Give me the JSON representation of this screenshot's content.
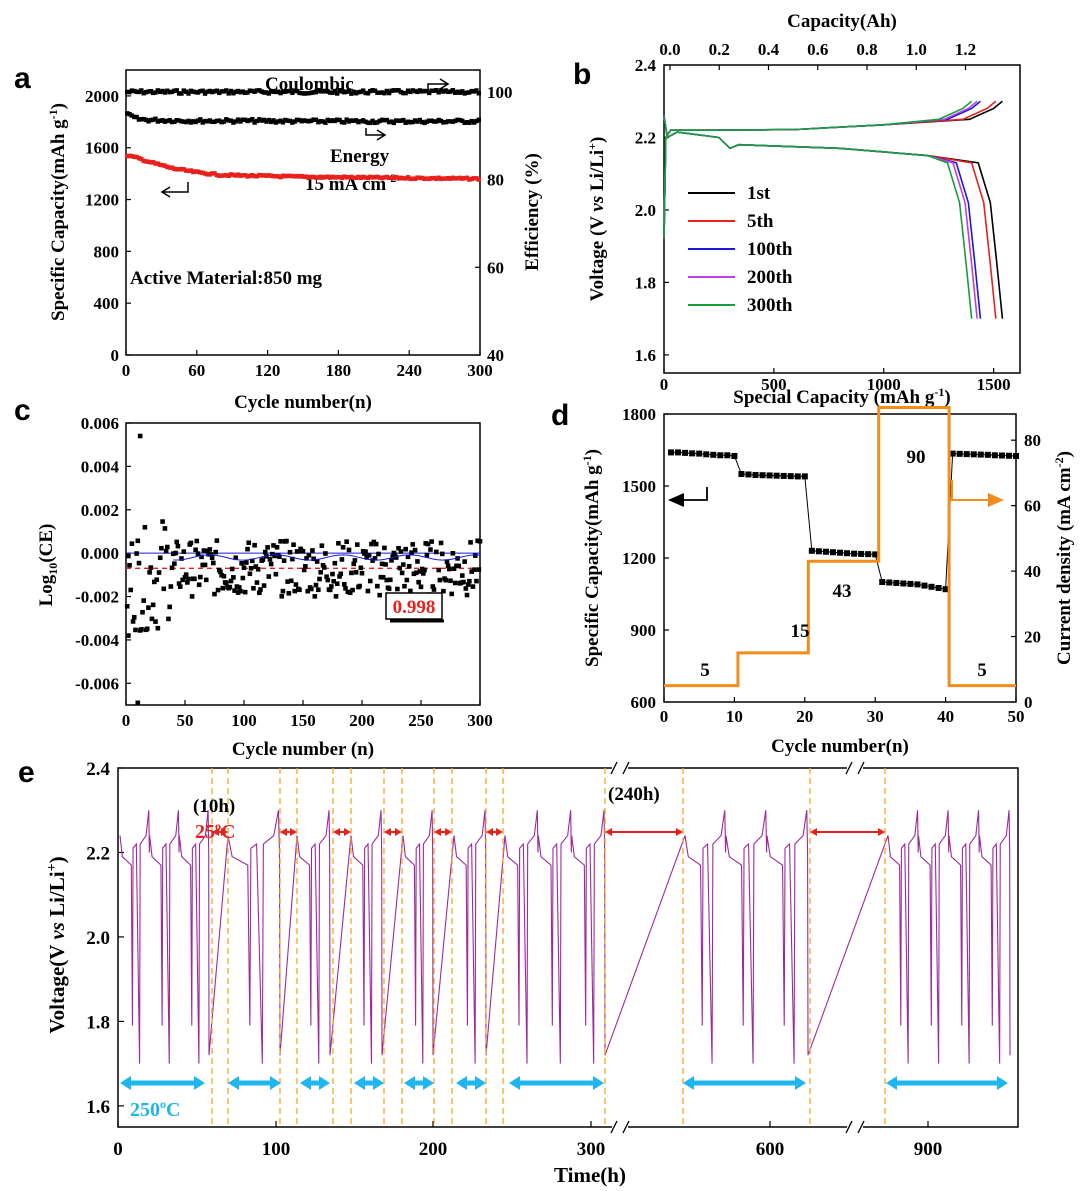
{
  "chart_data": [
    {
      "panel": "a",
      "type": "scatter",
      "xlabel": "Cycle number(n)",
      "ylabel": "Specific Capacity(mAh g-1)",
      "ylabel_right": "Efficiency (%)",
      "xticks": [
        "0",
        "60",
        "120",
        "180",
        "240",
        "300"
      ],
      "yticks": [
        "0",
        "400",
        "800",
        "1200",
        "1600",
        "2000"
      ],
      "yticks_right": [
        "40",
        "60",
        "80",
        "100"
      ],
      "xlim": [
        0,
        300
      ],
      "ylim": [
        0,
        2200
      ],
      "ylim_right": [
        40,
        105
      ],
      "series": [
        {
          "name": "Coulombic",
          "axis": "right",
          "color": "#000000",
          "x": [
            1,
            30,
            60,
            100,
            150,
            200,
            250,
            300
          ],
          "values": [
            100,
            100,
            100,
            100,
            100,
            100,
            100,
            100
          ]
        },
        {
          "name": "Energy",
          "axis": "right",
          "color": "#000000",
          "x": [
            1,
            10,
            20,
            40,
            60,
            100,
            150,
            200,
            250,
            300
          ],
          "values": [
            94.8,
            93.8,
            93.6,
            93.5,
            93.4,
            93.4,
            93.3,
            93.3,
            93.3,
            93.3
          ]
        },
        {
          "name": "Specific capacity",
          "axis": "left",
          "color": "#e8211c",
          "x": [
            1,
            10,
            20,
            40,
            60,
            80,
            100,
            150,
            200,
            250,
            300
          ],
          "values": [
            1540,
            1520,
            1490,
            1440,
            1410,
            1390,
            1385,
            1375,
            1370,
            1365,
            1360
          ]
        }
      ],
      "annotations": {
        "coulombic": "Coulombic",
        "energy": "Energy",
        "current": "15 mA cm",
        "current_sup": "-2",
        "active": "Active Material:850 mg"
      }
    },
    {
      "panel": "b",
      "type": "line",
      "xlabel": "Special Capacity (mAh g",
      "xlabel_sup": "-1",
      "xlabel_end": ")",
      "x2label": "Capacity(Ah)",
      "ylabel": "Voltage (V vs Li/Li+)",
      "xticks": [
        "0",
        "500",
        "1000",
        "1500"
      ],
      "x2ticks": [
        "0.0",
        "0.2",
        "0.4",
        "0.6",
        "0.8",
        "1.0",
        "1.2"
      ],
      "yticks": [
        "1.6",
        "1.8",
        "2.0",
        "2.2",
        "2.4"
      ],
      "xlim": [
        0,
        1620
      ],
      "ylim": [
        1.55,
        2.4
      ],
      "series": [
        {
          "name": "1st",
          "color": "#000000",
          "x_end": 1540
        },
        {
          "name": "5th",
          "color": "#e8211c",
          "x_end": 1510
        },
        {
          "name": "100th",
          "color": "#1a1ad6",
          "x_end": 1440
        },
        {
          "name": "200th",
          "color": "#c03ee8",
          "x_end": 1425
        },
        {
          "name": "300th",
          "color": "#13a03a",
          "x_end": 1400
        }
      ],
      "charge_plateau_v": 2.22,
      "discharge_plateau_v": [
        2.18,
        2.14
      ],
      "cutoff_v": [
        1.7,
        2.3
      ]
    },
    {
      "panel": "c",
      "type": "scatter",
      "xlabel": "Cycle number (n)",
      "ylabel": "Log10(CE)",
      "xticks": [
        "0",
        "50",
        "100",
        "150",
        "200",
        "250",
        "300"
      ],
      "yticks": [
        "-0.006",
        "-0.004",
        "-0.002",
        "0.000",
        "0.002",
        "0.004",
        "0.006"
      ],
      "xlim": [
        0,
        300
      ],
      "ylim": [
        -0.007,
        0.006
      ],
      "mean_line": -0.0007,
      "zero_line": 0.0,
      "annotation": "0.998",
      "highlights": [
        {
          "x": 12,
          "y": 0.0054
        },
        {
          "x": 10,
          "y": -0.0069
        },
        {
          "x": 2,
          "y": -0.0038
        }
      ]
    },
    {
      "panel": "d",
      "type": "line",
      "xlabel": "Cycle number(n)",
      "ylabel": "Specific Capacity(mAh g-1)",
      "ylabel_right": "Current density (mA cm-2)",
      "xticks": [
        "0",
        "10",
        "20",
        "30",
        "40",
        "50"
      ],
      "yticks": [
        "600",
        "900",
        "1200",
        "1500",
        "1800"
      ],
      "yticks_right": [
        "0",
        "20",
        "40",
        "60",
        "80"
      ],
      "xlim": [
        0,
        50
      ],
      "ylim": [
        600,
        1800
      ],
      "ylim_right": [
        0,
        88
      ],
      "capacity": {
        "x": [
          1,
          2,
          3,
          4,
          5,
          6,
          7,
          8,
          9,
          10,
          11,
          12,
          13,
          14,
          15,
          16,
          17,
          18,
          19,
          20,
          21,
          22,
          23,
          24,
          25,
          26,
          27,
          28,
          29,
          30,
          31,
          32,
          33,
          34,
          35,
          36,
          37,
          38,
          39,
          40,
          41,
          42,
          43,
          44,
          45,
          46,
          47,
          48,
          49,
          50
        ],
        "values": [
          1640,
          1640,
          1638,
          1636,
          1635,
          1632,
          1630,
          1628,
          1628,
          1625,
          1550,
          1548,
          1546,
          1545,
          1544,
          1543,
          1542,
          1541,
          1540,
          1540,
          1230,
          1228,
          1226,
          1224,
          1222,
          1220,
          1218,
          1217,
          1216,
          1215,
          1100,
          1098,
          1096,
          1094,
          1092,
          1090,
          1085,
          1080,
          1075,
          1070,
          1635,
          1634,
          1633,
          1632,
          1631,
          1630,
          1628,
          1627,
          1626,
          1625
        ]
      },
      "current_steps": [
        {
          "from": 1,
          "to": 10,
          "value": 5
        },
        {
          "from": 11,
          "to": 20,
          "value": 15
        },
        {
          "from": 21,
          "to": 30,
          "value": 43
        },
        {
          "from": 31,
          "to": 40,
          "value": 90
        },
        {
          "from": 41,
          "to": 50,
          "value": 5
        }
      ],
      "step_labels": [
        "5",
        "15",
        "43",
        "90",
        "5"
      ],
      "current_color": "#f28c1a"
    },
    {
      "panel": "e",
      "type": "line",
      "xlabel": "Time(h)",
      "ylabel": "Voltage(V vs Li/Li+)",
      "xticks": [
        "0",
        "100",
        "200",
        "300",
        "600",
        "900"
      ],
      "yticks": [
        "1.6",
        "1.8",
        "2.0",
        "2.2",
        "2.4"
      ],
      "ylim": [
        1.55,
        2.4
      ],
      "labels": {
        "rest_short": "(10h)",
        "rest_long": "(240h)",
        "cold": "25",
        "cold_sup": "o",
        "cold_unit": "C",
        "hot": "250",
        "hot_sup": "o",
        "hot_unit": "C"
      },
      "trace_color": "#9c2a9c",
      "rest_color": "#e8211c",
      "operate_color": "#1fb6f0",
      "boundary_color": "#f5a623"
    }
  ],
  "panel_labels": [
    "a",
    "b",
    "c",
    "d",
    "e"
  ]
}
